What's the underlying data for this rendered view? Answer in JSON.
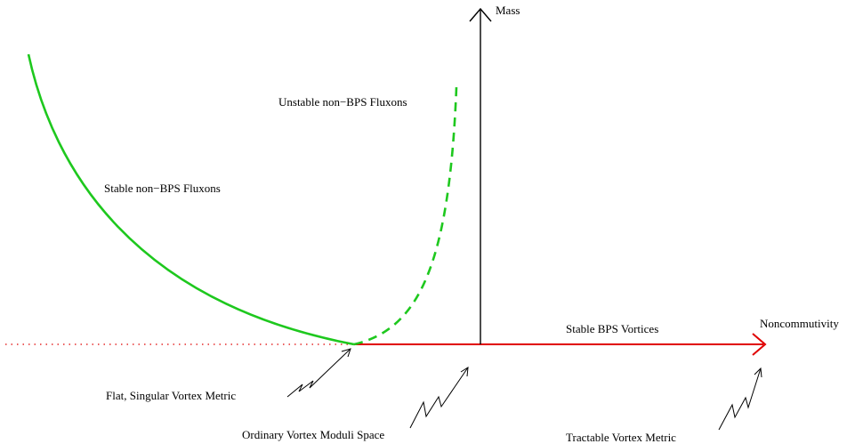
{
  "diagram": {
    "axes": {
      "vertical_label": "Mass",
      "horizontal_label": "Noncommutivity"
    },
    "curves": {
      "stable_fluxons": "Stable non−BPS Fluxons",
      "unstable_fluxons": "Unstable non−BPS Fluxons",
      "bps_vortices": "Stable BPS Vortices"
    },
    "annotations": {
      "flat_singular": "Flat, Singular Vortex Metric",
      "ordinary_moduli": "Ordinary Vortex Moduli Space",
      "tractable_metric": "Tractable Vortex Metric"
    },
    "colors": {
      "green": "#1ec81e",
      "red": "#e00000",
      "black": "#000000"
    }
  }
}
